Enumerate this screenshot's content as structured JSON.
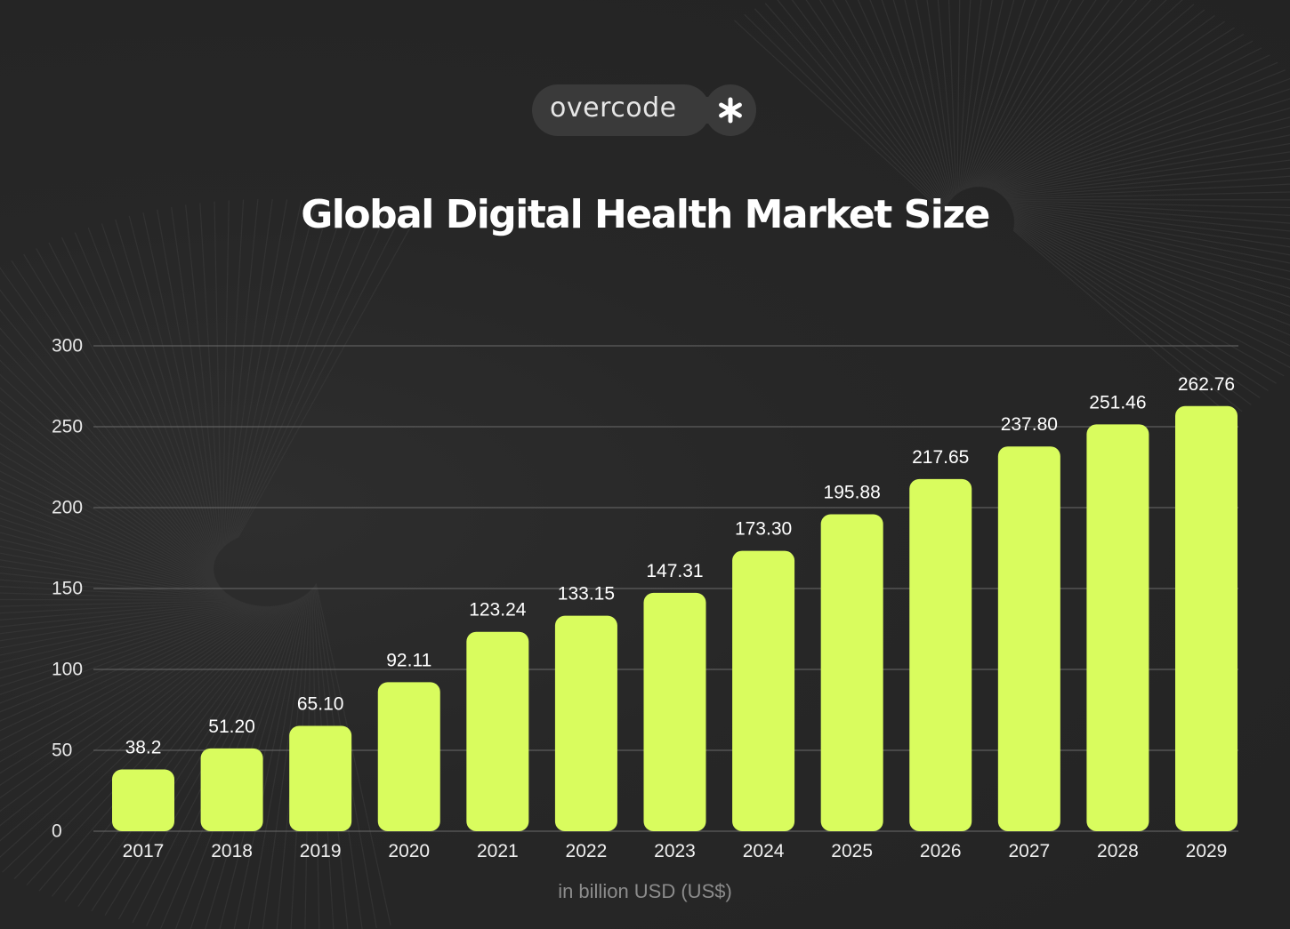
{
  "brand": {
    "logo_text": "overcode",
    "logo_symbol": "asterisk-icon"
  },
  "colors": {
    "background": "#262626",
    "bar": "#d9fc5e",
    "text": "#ffffff",
    "grid": "#6a6a6a",
    "muted": "#8c8c8c"
  },
  "chart_data": {
    "type": "bar",
    "title": "Global Digital Health Market Size",
    "xlabel": "",
    "ylabel": "",
    "unit_label": "in billion USD (US$)",
    "categories": [
      "2017",
      "2018",
      "2019",
      "2020",
      "2021",
      "2022",
      "2023",
      "2024",
      "2025",
      "2026",
      "2027",
      "2028",
      "2029"
    ],
    "values": [
      38.2,
      51.2,
      65.1,
      92.11,
      123.24,
      133.15,
      147.31,
      173.3,
      195.88,
      217.65,
      237.8,
      251.46,
      262.76
    ],
    "value_labels": [
      "38.2",
      "51.20",
      "65.10",
      "92.11",
      "123.24",
      "133.15",
      "147.31",
      "173.30",
      "195.88",
      "217.65",
      "237.80",
      "251.46",
      "262.76"
    ],
    "yticks": [
      0,
      50,
      100,
      150,
      200,
      250,
      300
    ],
    "ylim": [
      0,
      300
    ],
    "grid": true,
    "legend": "none"
  }
}
